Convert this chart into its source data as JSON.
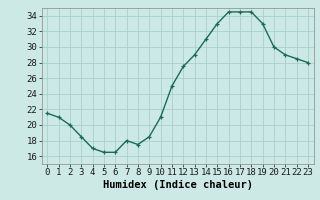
{
  "x": [
    0,
    1,
    2,
    3,
    4,
    5,
    6,
    7,
    8,
    9,
    10,
    11,
    12,
    13,
    14,
    15,
    16,
    17,
    18,
    19,
    20,
    21,
    22,
    23
  ],
  "y": [
    21.5,
    21,
    20,
    18.5,
    17,
    16.5,
    16.5,
    18,
    17.5,
    18.5,
    21,
    25,
    27.5,
    29,
    31,
    33,
    34.5,
    34.5,
    34.5,
    33,
    30,
    29,
    28.5,
    28
  ],
  "line_color": "#1a6b5a",
  "marker": "+",
  "marker_size": 3.5,
  "background_color": "#cde9e6",
  "grid_color": "#aacfcc",
  "xlabel": "Humidex (Indice chaleur)",
  "xlim": [
    -0.5,
    23.5
  ],
  "ylim": [
    15.0,
    35.0
  ],
  "yticks": [
    16,
    18,
    20,
    22,
    24,
    26,
    28,
    30,
    32,
    34
  ],
  "xticks": [
    0,
    1,
    2,
    3,
    4,
    5,
    6,
    7,
    8,
    9,
    10,
    11,
    12,
    13,
    14,
    15,
    16,
    17,
    18,
    19,
    20,
    21,
    22,
    23
  ],
  "tick_label_fontsize": 6.5,
  "xlabel_fontsize": 7.5,
  "linewidth": 1.0
}
